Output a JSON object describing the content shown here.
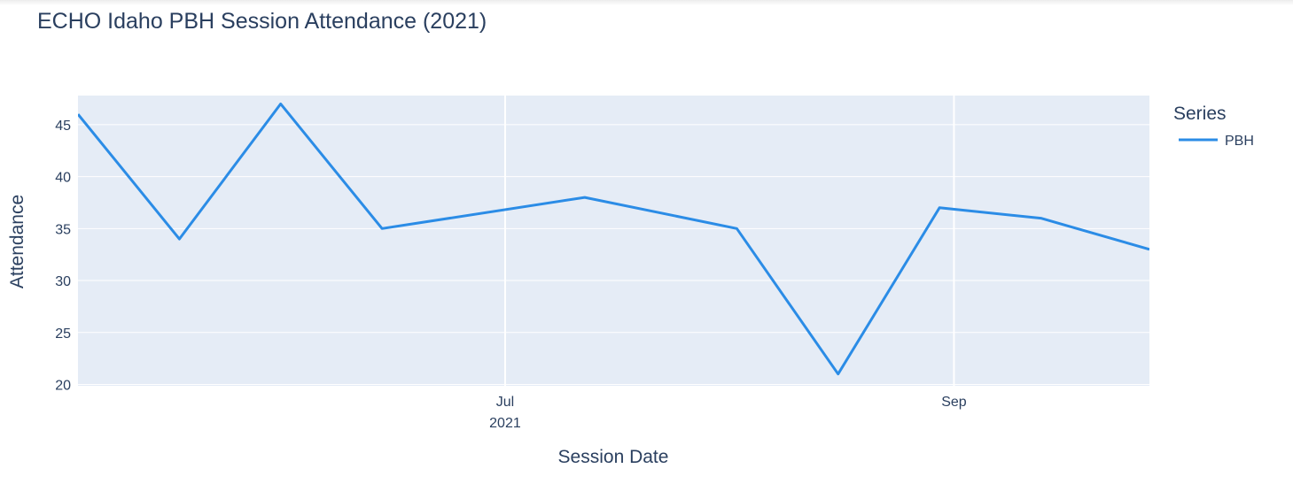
{
  "colors": {
    "plot_background": "#e5ecf6",
    "grid": "#ffffff",
    "text": "#2a3f5f",
    "series_pbh": "#2b8ce6"
  },
  "chart_data": {
    "type": "line",
    "title": "ECHO Idaho PBH Session Attendance (2021)",
    "xlabel": "Session Date",
    "ylabel": "Attendance",
    "x_axis_type": "date",
    "xlim": [
      "2021-05-03",
      "2021-09-28"
    ],
    "ylim": [
      19.7,
      47.8
    ],
    "x_ticks": [
      {
        "date": "2021-07-01",
        "label": "Jul",
        "sublabel": "2021"
      },
      {
        "date": "2021-09-01",
        "label": "Sep",
        "sublabel": ""
      }
    ],
    "y_ticks": [
      20,
      25,
      30,
      35,
      40,
      45
    ],
    "grid": true,
    "legend": {
      "title": "Series",
      "position": "right"
    },
    "series": [
      {
        "name": "PBH",
        "x": [
          "2021-05-03",
          "2021-05-17",
          "2021-05-31",
          "2021-06-14",
          "2021-06-28",
          "2021-07-12",
          "2021-08-02",
          "2021-08-16",
          "2021-08-30",
          "2021-09-13",
          "2021-09-28"
        ],
        "values": [
          46,
          34,
          47,
          35,
          null,
          38,
          35,
          21,
          37,
          36,
          33
        ]
      }
    ]
  }
}
